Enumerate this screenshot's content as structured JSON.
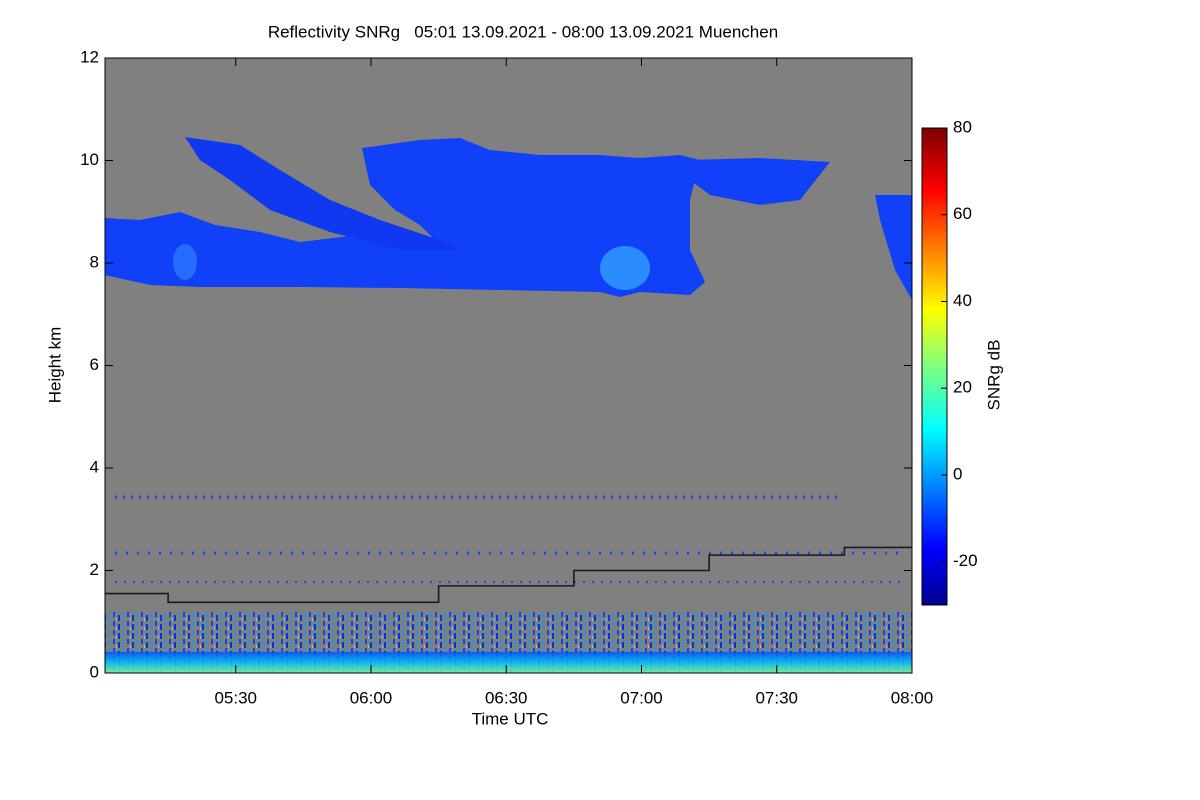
{
  "chart_data": {
    "type": "line",
    "title": "Reflectivity SNRg   05:01 13.09.2021 - 08:00 13.09.2021 Muenchen",
    "x_label": "Time UTC",
    "y_label": "Height km",
    "xlim": [
      301,
      480
    ],
    "xticks": [
      {
        "value": 330,
        "label": "05:30"
      },
      {
        "value": 360,
        "label": "06:00"
      },
      {
        "value": 390,
        "label": "06:30"
      },
      {
        "value": 420,
        "label": "07:00"
      },
      {
        "value": 450,
        "label": "07:30"
      },
      {
        "value": 480,
        "label": "08:00"
      }
    ],
    "ylim": [
      0,
      12
    ],
    "yticks": [
      0,
      2,
      4,
      6,
      8,
      10,
      12
    ],
    "series": [
      {
        "color": "#1a1a1a",
        "x": [
          301,
          315,
          315,
          375,
          375,
          405,
          405,
          435,
          435,
          465,
          465,
          480
        ],
        "values": [
          1.55,
          1.55,
          1.38,
          1.38,
          1.7,
          1.7,
          2.0,
          2.0,
          2.3,
          2.3,
          2.45,
          2.45
        ]
      }
    ],
    "colorbar": {
      "label": "SNRg dB",
      "lim": [
        -30,
        80
      ],
      "ticks": [
        -20,
        0,
        20,
        40,
        60,
        80
      ]
    }
  }
}
